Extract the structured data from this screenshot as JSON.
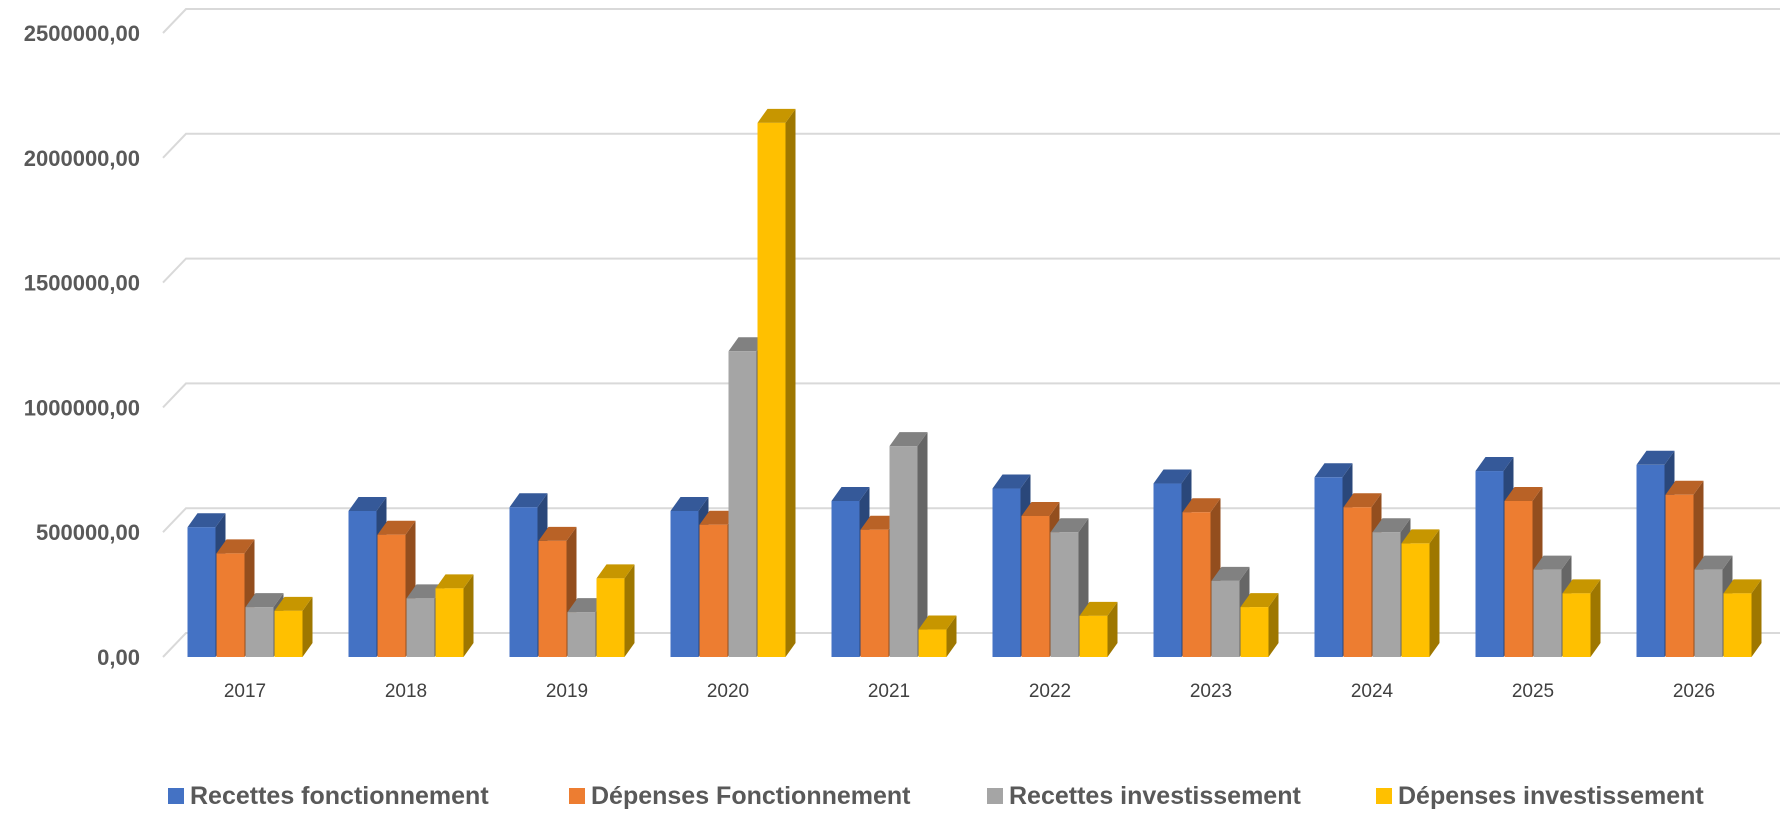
{
  "chart_data": {
    "type": "bar",
    "categories": [
      "2017",
      "2018",
      "2019",
      "2020",
      "2021",
      "2022",
      "2023",
      "2024",
      "2025",
      "2026"
    ],
    "series": [
      {
        "name": "Recettes fonctionnement",
        "color": "#4472C4",
        "values": [
          520000,
          585000,
          600000,
          585000,
          625000,
          675000,
          695000,
          720000,
          745000,
          770000
        ]
      },
      {
        "name": "Dépenses Fonctionnement",
        "color": "#ED7D31",
        "values": [
          415000,
          490000,
          465000,
          530000,
          510000,
          565000,
          580000,
          600000,
          625000,
          650000
        ]
      },
      {
        "name": "Recettes investissement",
        "color": "#A5A5A5",
        "values": [
          200000,
          235000,
          180000,
          1225000,
          845000,
          500000,
          305000,
          500000,
          350000,
          350000
        ]
      },
      {
        "name": "Dépenses investissement",
        "color": "#FFC000",
        "values": [
          185000,
          275000,
          315000,
          2140000,
          110000,
          165000,
          200000,
          455000,
          255000,
          255000
        ]
      }
    ],
    "y_ticks": [
      "0,00",
      "500000,00",
      "1000000,00",
      "1500000,00",
      "2000000,00",
      "2500000,00"
    ],
    "ylim": [
      0,
      2500000
    ],
    "grid": true,
    "legend_position": "bottom",
    "title": "",
    "xlabel": "",
    "ylabel": ""
  }
}
